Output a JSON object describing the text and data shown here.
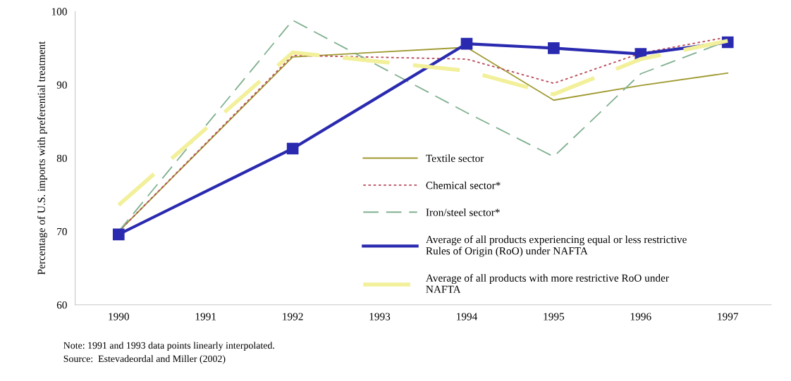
{
  "chart_data": {
    "type": "line",
    "ylabel": "Percentage of U.S. imports with preferential treatment",
    "x": [
      1990,
      1992,
      1994,
      1995,
      1996,
      1997
    ],
    "xlim": [
      1989.5,
      1997.5
    ],
    "xticks": [
      1990,
      1991,
      1992,
      1993,
      1994,
      1995,
      1996,
      1997
    ],
    "series": [
      {
        "name": "Textile sector",
        "color": "#a09a30",
        "line_style": "solid",
        "marker": "none",
        "values": [
          70.0,
          93.8,
          95.1,
          87.9,
          89.9,
          91.6
        ]
      },
      {
        "name": "Chemical sector*",
        "color": "#b84a5a",
        "line_style": "dotted",
        "marker": "none",
        "values": [
          70.0,
          94.0,
          93.5,
          90.2,
          94.3,
          96.5
        ]
      },
      {
        "name": "Iron/steel sector*",
        "color": "#80b090",
        "line_style": "dashed",
        "marker": "none",
        "values": [
          70.0,
          98.8,
          86.2,
          80.2,
          91.5,
          96.0
        ]
      },
      {
        "name": "Average of all products experiencing equal or less restrictive\nRules of Origin (RoO) under NAFTA",
        "color": "#2a2ab0",
        "line_style": "solid",
        "marker": "square",
        "values": [
          69.6,
          81.3,
          95.6,
          95.0,
          94.2,
          95.8
        ]
      },
      {
        "name": "Average of all products with more restrictive RoO under\nNAFTA",
        "color": "#f2f09a",
        "line_style": "dashed",
        "marker": "none",
        "values": [
          73.6,
          94.4,
          91.9,
          88.7,
          93.5,
          96.0
        ]
      }
    ],
    "ylim": [
      60,
      100
    ],
    "yticks": [
      60,
      70,
      80,
      90,
      100
    ],
    "grid": false,
    "legend": "bottom",
    "annotations": [
      "Note: 1991 and 1993 data points linearly interpolated.",
      "Source:  Estevadeordal and Miller (2002)"
    ]
  }
}
